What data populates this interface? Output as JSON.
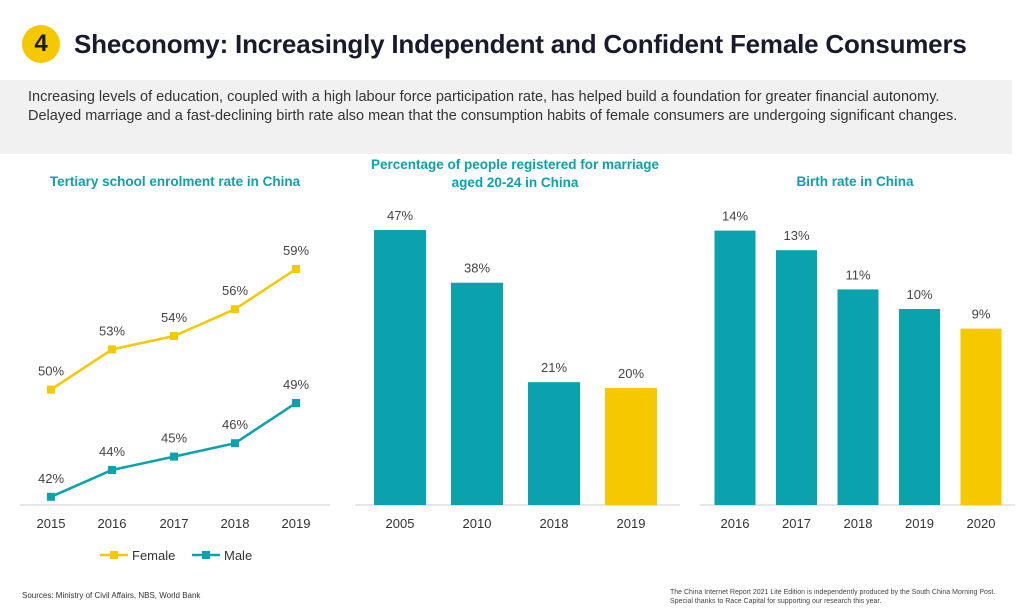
{
  "header": {
    "number": "4",
    "title": "Sheconomy: Increasingly Independent and Confident Female Consumers"
  },
  "intro_text": "Increasing levels of education, coupled with a high labour force participation rate, has helped build a foundation for greater financial autonomy. Delayed marriage and a fast-declining birth rate also mean that the consumption habits of female consumers are undergoing significant changes.",
  "colors": {
    "accent_yellow": "#f5c800",
    "accent_teal": "#0aa2ad"
  },
  "chart_data": [
    {
      "type": "line",
      "title": "Tertiary school enrolment rate in China",
      "x": [
        "2015",
        "2016",
        "2017",
        "2018",
        "2019"
      ],
      "series": [
        {
          "name": "Female",
          "color": "#f5c800",
          "values": [
            50,
            53,
            54,
            56,
            59
          ],
          "labels": [
            "50%",
            "53%",
            "54%",
            "56%",
            "59%"
          ]
        },
        {
          "name": "Male",
          "color": "#0aa2ad",
          "values": [
            42,
            44,
            45,
            46,
            49
          ],
          "labels": [
            "42%",
            "44%",
            "45%",
            "46%",
            "49%"
          ]
        }
      ],
      "legend": "bottom"
    },
    {
      "type": "bar",
      "title": "Percentage of people registered for marriage aged 20-24 in China",
      "categories": [
        "2005",
        "2010",
        "2018",
        "2019"
      ],
      "values": [
        47,
        38,
        21,
        20
      ],
      "labels": [
        "47%",
        "38%",
        "21%",
        "20%"
      ],
      "colors": [
        "#0aa2ad",
        "#0aa2ad",
        "#0aa2ad",
        "#f5c800"
      ]
    },
    {
      "type": "bar",
      "title": "Birth rate in China",
      "categories": [
        "2016",
        "2017",
        "2018",
        "2019",
        "2020"
      ],
      "values": [
        14,
        13,
        11,
        10,
        9
      ],
      "labels": [
        "14%",
        "13%",
        "11%",
        "10%",
        "9%"
      ],
      "colors": [
        "#0aa2ad",
        "#0aa2ad",
        "#0aa2ad",
        "#0aa2ad",
        "#f5c800"
      ]
    }
  ],
  "footer": {
    "sources": "Sources: Ministry of Civil Affairs, NBS, World Bank",
    "credit_line1": "The China Internet Report 2021 Lite Edition is independently produced by the South China Morning Post.",
    "credit_line2": "Special thanks to Race Capital for supporting our research this year."
  }
}
